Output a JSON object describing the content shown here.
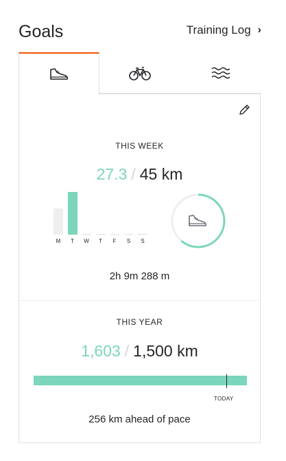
{
  "header": {
    "title": "Goals",
    "training_log_label": "Training Log"
  },
  "tabs": [
    {
      "icon": "run-shoe-icon",
      "active": true
    },
    {
      "icon": "bike-icon",
      "active": false
    },
    {
      "icon": "swim-waves-icon",
      "active": false
    }
  ],
  "accent_color": "#fc5200",
  "progress_color": "#7bd6bb",
  "week": {
    "label": "THIS WEEK",
    "current": "27.3",
    "goal": "45 km",
    "goal_fraction": 0.61,
    "days": [
      "M",
      "T",
      "W",
      "T",
      "F",
      "S",
      "S"
    ],
    "daily_distance_fraction": [
      0.62,
      1.0,
      0,
      0,
      0,
      0,
      0
    ],
    "time_summary": "2h 9m 288 m"
  },
  "year": {
    "label": "THIS YEAR",
    "current": "1,603",
    "goal": "1,500 km",
    "progress_fraction": 1.0,
    "today_fraction": 0.903,
    "today_label": "TODAY",
    "pace_text": "256 km ahead of pace"
  }
}
